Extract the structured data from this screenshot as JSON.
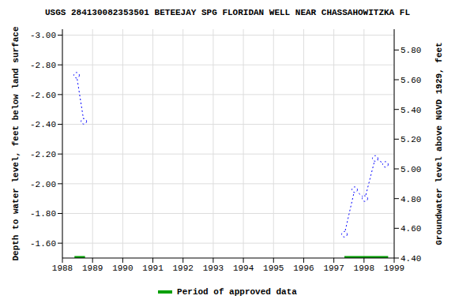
{
  "chart_data": {
    "type": "line",
    "title": "USGS 284130082353501 BETEEJAY SPG FLORIDAN WELL NEAR CHASSAHOWITZKA FL",
    "y_label": "Depth to water level, feet below land surface",
    "y2_label": "Groundwater level above NGVD 1929, feet",
    "x": [
      1988.47,
      1988.71,
      null,
      1997.35,
      1997.69,
      1998.03,
      1998.37,
      1998.71
    ],
    "series": [
      {
        "name": "Depth to water level",
        "color": "#0000ff",
        "values": [
          -2.73,
          -2.42,
          null,
          -1.66,
          -1.96,
          -1.9,
          -2.17,
          -2.13
        ],
        "marker": "circle",
        "line_style": "dotted"
      }
    ],
    "xlim": [
      1988,
      1999
    ],
    "xticks": [
      1988,
      1989,
      1990,
      1991,
      1992,
      1993,
      1994,
      1995,
      1996,
      1997,
      1998,
      1999
    ],
    "ylim": [
      -3.04,
      -1.5
    ],
    "yticks": [
      {
        "value": -3,
        "label": "-3.00"
      },
      {
        "value": -2.8,
        "label": "-2.80"
      },
      {
        "value": -2.6,
        "label": "-2.60"
      },
      {
        "value": -2.4,
        "label": "-2.40"
      },
      {
        "value": -2.2,
        "label": "-2.20"
      },
      {
        "value": -2,
        "label": "-2.00"
      },
      {
        "value": -1.8,
        "label": "-1.80"
      },
      {
        "value": -1.6,
        "label": "-1.60"
      }
    ],
    "y2lim": [
      4.4,
      5.94
    ],
    "y2ticks": [
      {
        "value": 4.4,
        "label": "4.40"
      },
      {
        "value": 4.6,
        "label": "4.60"
      },
      {
        "value": 4.8,
        "label": "4.80"
      },
      {
        "value": 5,
        "label": "5.00"
      },
      {
        "value": 5.2,
        "label": "5.20"
      },
      {
        "value": 5.4,
        "label": "5.40"
      },
      {
        "value": 5.6,
        "label": "5.60"
      },
      {
        "value": 5.8,
        "label": "5.80"
      }
    ],
    "grid": true,
    "approved_periods": {
      "name": "Period of approved data",
      "color": "#00a000",
      "periods": [
        [
          1988.4,
          1988.75
        ],
        [
          1997.35,
          1998.8
        ]
      ]
    }
  }
}
